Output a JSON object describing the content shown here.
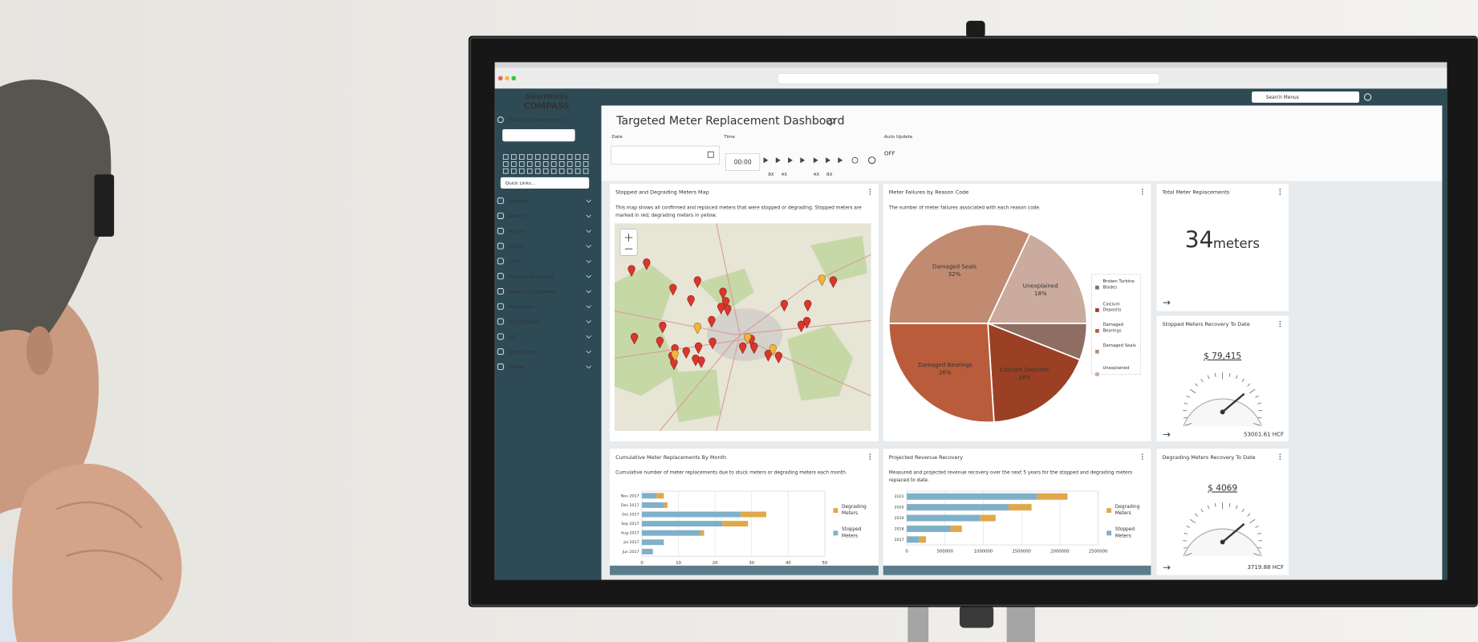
{
  "browser": {
    "search_placeholder": "Search Menus"
  },
  "sidebar": {
    "brand": "SmartWorks",
    "product": "COMPASS",
    "section": "Previously Viewed Meters",
    "quick_links": "Quick Links...",
    "menu": [
      "Favorites",
      "Reports",
      "Actions",
      "Setups",
      "Demo",
      "Targeted Messaging",
      "System Configuration",
      "Meter Data",
      "Task Manager",
      "BSD",
      "Rules Engine",
      "Utilities"
    ]
  },
  "dashboard": {
    "title": "Targeted Meter Replacement Dashboard",
    "date_label": "Date",
    "time_label": "Time",
    "time_value": "00:00",
    "auto_update_label": "Auto Update",
    "auto_update_value": "OFF",
    "speeds": [
      "8X",
      "4X",
      "4X",
      "8X"
    ]
  },
  "widgets": {
    "map": {
      "title": "Stopped and Degrading Meters Map",
      "description": "This map shows all confirmed and replaced meters that were stopped or degrading. Stopped meters are marked in red; degrading meters in yellow."
    },
    "reason_codes": {
      "title": "Meter Failures by Reason Code",
      "description": "The number of meter failures associated with each reason code.",
      "chart": {
        "type": "pie",
        "categories": [
          "Broken Turbine Blades",
          "Calcium Deposits",
          "Damaged Bearings",
          "Damaged Seals",
          "Unexplained"
        ],
        "values": [
          6,
          18,
          26,
          32,
          18
        ],
        "value_labels": [
          null,
          "18%",
          "26%",
          "32%",
          "18%"
        ],
        "colors": [
          "#8e6e62",
          "#9b4024",
          "#b85c3b",
          "#c08b71",
          "#caab9d"
        ]
      }
    },
    "total": {
      "title": "Total Meter Replacements",
      "value": 34,
      "unit": "meters"
    },
    "stopped_recovery": {
      "title": "Stopped Meters Recovery To Date",
      "amount": "$ 79,415",
      "volume": "53001.61 HCF"
    },
    "degrading_recovery": {
      "title": "Degrading Meters Recovery To Date",
      "amount": "$ 4069",
      "volume": "3719.88 HCF"
    },
    "cumulative": {
      "title": "Cumulative Meter Replacements By Month",
      "description": "Cumulative number of meter replacements due to stuck meters or degrading meters each month.",
      "chart": {
        "type": "bar",
        "orientation": "horizontal",
        "stacked": true,
        "categories": [
          "Nov 2017",
          "Dec 2017",
          "Oct 2017",
          "Sep 2017",
          "Aug 2017",
          "Jul 2017",
          "Jun 2017"
        ],
        "series": [
          {
            "name": "Degrading Meters",
            "color": "#e0a84a",
            "values": [
              2,
              1,
              7,
              7,
              1,
              0,
              0
            ]
          },
          {
            "name": "Stopped Meters",
            "color": "#7fb0c9",
            "values": [
              4,
              6,
              27,
              22,
              16,
              6,
              3
            ]
          }
        ],
        "xlim": [
          0,
          50
        ],
        "xticks": [
          0,
          10,
          20,
          30,
          40,
          50
        ],
        "grid": true
      }
    },
    "revenue": {
      "title": "Projected Revenue Recovery",
      "description": "Measured and projected revenue recovery over the next 5 years for the stopped and degrading meters replaced to date.",
      "chart": {
        "type": "bar",
        "orientation": "horizontal",
        "stacked": true,
        "categories": [
          "2021",
          "2020",
          "2019",
          "2018",
          "2017"
        ],
        "series": [
          {
            "name": "Degrading Meters",
            "color": "#e0a84a",
            "values": [
              400000,
              300000,
              200000,
              150000,
              90000
            ]
          },
          {
            "name": "Stopped Meters",
            "color": "#7fb0c9",
            "values": [
              1700000,
              1330000,
              960000,
              570000,
              160000
            ]
          }
        ],
        "xlim": [
          0,
          2500000
        ],
        "xticks": [
          0,
          500000,
          1000000,
          1500000,
          2000000,
          2500000
        ],
        "grid": true
      }
    }
  }
}
